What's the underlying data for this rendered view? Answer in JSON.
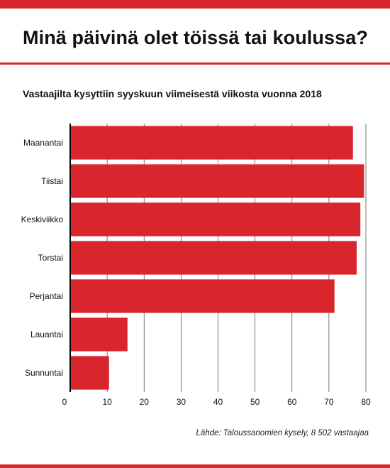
{
  "header": {
    "title": "Minä päivinä olet töissä tai koulussa?",
    "subtitle": "Vastaajilta kysyttiin syyskuun viimeisestä viikosta vuonna 2018"
  },
  "footer": {
    "source": "Lähde: Taloussanomien kysely, 8 502 vastaajaa"
  },
  "colors": {
    "accent": "#d9262c",
    "bar": "#d9262c",
    "grid": "#555555",
    "axis": "#000000"
  },
  "chart_data": {
    "type": "bar",
    "orientation": "horizontal",
    "title": "Minä päivinä olet töissä tai koulussa?",
    "subtitle": "Vastaajilta kysyttiin syyskuun viimeisestä viikosta vuonna 2018",
    "categories": [
      "Maanantai",
      "Tiistai",
      "Keskiviikko",
      "Torstai",
      "Perjantai",
      "Lauantai",
      "Sunnuntai"
    ],
    "values": [
      76.5,
      79.5,
      78.5,
      77.5,
      71.5,
      15.5,
      10.5
    ],
    "xlim": [
      0,
      80
    ],
    "xticks": [
      0,
      10,
      20,
      30,
      40,
      50,
      60,
      70,
      80
    ],
    "xlabel": "",
    "ylabel": "",
    "grid": "vertical",
    "legend": "none"
  }
}
